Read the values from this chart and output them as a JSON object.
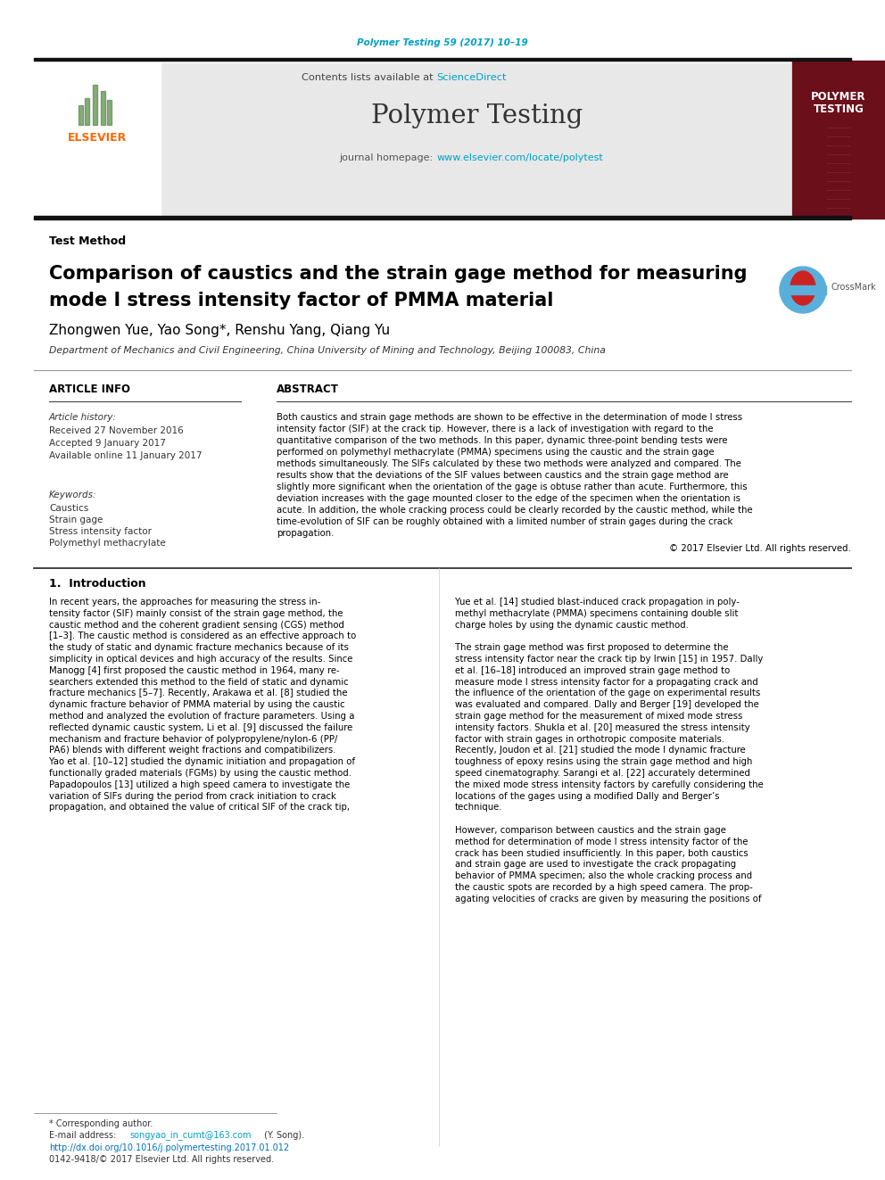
{
  "journal_citation": "Polymer Testing 59 (2017) 10–19",
  "contents_text": "Contents lists available at ",
  "sciencedirect_text": "ScienceDirect",
  "journal_name": "Polymer Testing",
  "homepage_text": "journal homepage: ",
  "homepage_url": "www.elsevier.com/locate/polytest",
  "section_label": "Test Method",
  "title_line1": "Comparison of caustics and the strain gage method for measuring",
  "title_line2": "mode I stress intensity factor of PMMA material",
  "authors": "Zhongwen Yue, Yao Song*, Renshu Yang, Qiang Yu",
  "affiliation": "Department of Mechanics and Civil Engineering, China University of Mining and Technology, Beijing 100083, China",
  "article_info_header": "ARTICLE INFO",
  "abstract_header": "ABSTRACT",
  "article_history_label": "Article history:",
  "received": "Received 27 November 2016",
  "accepted": "Accepted 9 January 2017",
  "available": "Available online 11 January 2017",
  "keywords_label": "Keywords:",
  "keyword1": "Caustics",
  "keyword2": "Strain gage",
  "keyword3": "Stress intensity factor",
  "keyword4": "Polymethyl methacrylate",
  "copyright_text": "© 2017 Elsevier Ltd. All rights reserved.",
  "intro_header": "1.  Introduction",
  "footer_corresponding": "* Corresponding author.",
  "footer_email_label": "E-mail address: ",
  "footer_email": "songyao_in_cumt@163.com",
  "footer_email_suffix": " (Y. Song).",
  "footer_doi": "http://dx.doi.org/10.1016/j.polymertesting.2017.01.012",
  "footer_issn": "0142-9418/© 2017 Elsevier Ltd. All rights reserved.",
  "elsevier_color": "#FF6600",
  "sciencedirect_color": "#00A0C6",
  "url_color": "#00A0C6",
  "header_bar_color": "#1a1a1a",
  "journal_header_bg": "#e8e8e8",
  "polymer_testing_logo_bg": "#6B0F1A",
  "citation_color": "#00A0C6",
  "doi_color": "#0070C0",
  "abstract_lines": [
    "Both caustics and strain gage methods are shown to be effective in the determination of mode I stress",
    "intensity factor (SIF) at the crack tip. However, there is a lack of investigation with regard to the",
    "quantitative comparison of the two methods. In this paper, dynamic three-point bending tests were",
    "performed on polymethyl methacrylate (PMMA) specimens using the caustic and the strain gage",
    "methods simultaneously. The SIFs calculated by these two methods were analyzed and compared. The",
    "results show that the deviations of the SIF values between caustics and the strain gage method are",
    "slightly more significant when the orientation of the gage is obtuse rather than acute. Furthermore, this",
    "deviation increases with the gage mounted closer to the edge of the specimen when the orientation is",
    "acute. In addition, the whole cracking process could be clearly recorded by the caustic method, while the",
    "time-evolution of SIF can be roughly obtained with a limited number of strain gages during the crack",
    "propagation."
  ],
  "left_col_lines": [
    "In recent years, the approaches for measuring the stress in-",
    "tensity factor (SIF) mainly consist of the strain gage method, the",
    "caustic method and the coherent gradient sensing (CGS) method",
    "[1–3]. The caustic method is considered as an effective approach to",
    "the study of static and dynamic fracture mechanics because of its",
    "simplicity in optical devices and high accuracy of the results. Since",
    "Manogg [4] first proposed the caustic method in 1964, many re-",
    "searchers extended this method to the field of static and dynamic",
    "fracture mechanics [5–7]. Recently, Arakawa et al. [8] studied the",
    "dynamic fracture behavior of PMMA material by using the caustic",
    "method and analyzed the evolution of fracture parameters. Using a",
    "reflected dynamic caustic system, Li et al. [9] discussed the failure",
    "mechanism and fracture behavior of polypropylene/nylon-6 (PP/",
    "PA6) blends with different weight fractions and compatibilizers.",
    "Yao et al. [10–12] studied the dynamic initiation and propagation of",
    "functionally graded materials (FGMs) by using the caustic method.",
    "Papadopoulos [13] utilized a high speed camera to investigate the",
    "variation of SIFs during the period from crack initiation to crack",
    "propagation, and obtained the value of critical SIF of the crack tip,"
  ],
  "right_col_lines": [
    "Yue et al. [14] studied blast-induced crack propagation in poly-",
    "methyl methacrylate (PMMA) specimens containing double slit",
    "charge holes by using the dynamic caustic method.",
    "",
    "The strain gage method was first proposed to determine the",
    "stress intensity factor near the crack tip by Irwin [15] in 1957. Dally",
    "et al. [16–18] introduced an improved strain gage method to",
    "measure mode I stress intensity factor for a propagating crack and",
    "the influence of the orientation of the gage on experimental results",
    "was evaluated and compared. Dally and Berger [19] developed the",
    "strain gage method for the measurement of mixed mode stress",
    "intensity factors. Shukla et al. [20] measured the stress intensity",
    "factor with strain gages in orthotropic composite materials.",
    "Recently, Joudon et al. [21] studied the mode I dynamic fracture",
    "toughness of epoxy resins using the strain gage method and high",
    "speed cinematography. Sarangi et al. [22] accurately determined",
    "the mixed mode stress intensity factors by carefully considering the",
    "locations of the gages using a modified Dally and Berger’s",
    "technique.",
    "",
    "However, comparison between caustics and the strain gage",
    "method for determination of mode I stress intensity factor of the",
    "crack has been studied insufficiently. In this paper, both caustics",
    "and strain gage are used to investigate the crack propagating",
    "behavior of PMMA specimen; also the whole cracking process and",
    "the caustic spots are recorded by a high speed camera. The prop-",
    "agating velocities of cracks are given by measuring the positions of"
  ]
}
